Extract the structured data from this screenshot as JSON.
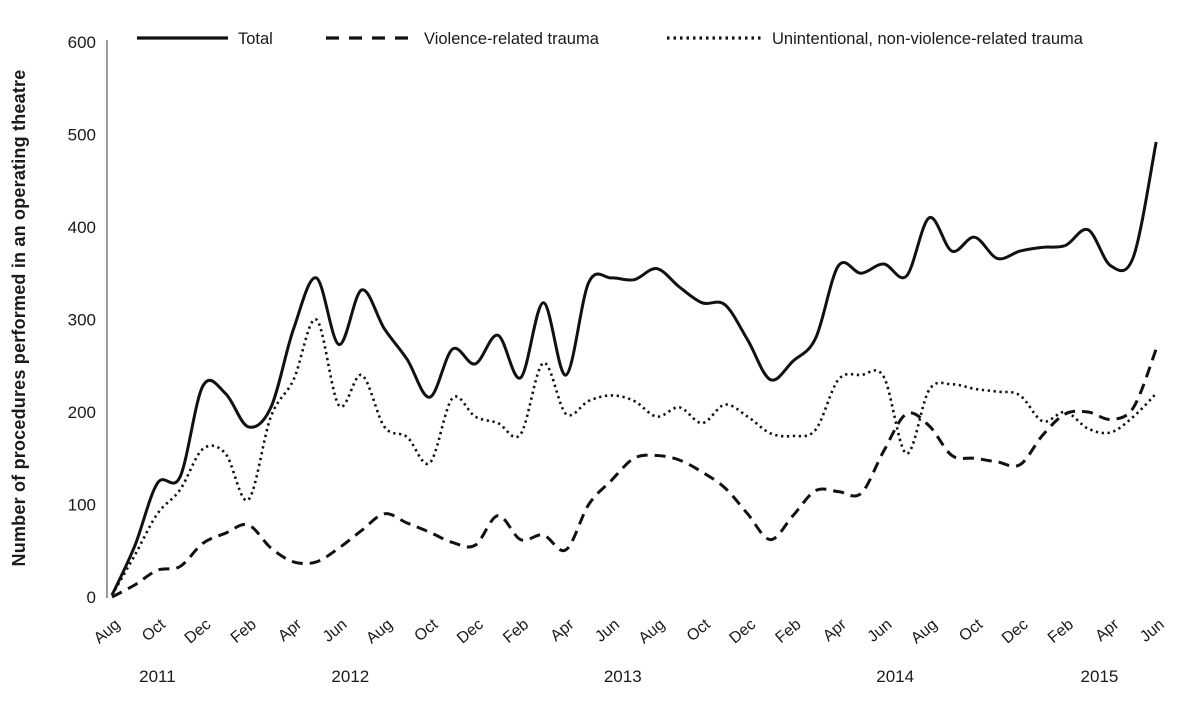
{
  "colors": {
    "line": "#111111",
    "axis": "#9b9b9b",
    "text": "#1a1a1a",
    "background": "#ffffff"
  },
  "chart_data": {
    "type": "line",
    "title": "",
    "xlabel": "",
    "ylabel": "Number of procedures performed in an operating theatre",
    "ylim": [
      0,
      600
    ],
    "yticks": [
      0,
      100,
      200,
      300,
      400,
      500,
      600
    ],
    "grid": false,
    "legend_position": "top",
    "x_tick_interval_months": 2,
    "x_tick_labels": [
      "Aug",
      "Oct",
      "Dec",
      "Feb",
      "Apr",
      "Jun",
      "Aug",
      "Oct",
      "Dec",
      "Feb",
      "Apr",
      "Jun",
      "Aug",
      "Oct",
      "Dec",
      "Feb",
      "Apr",
      "Jun",
      "Aug",
      "Oct",
      "Dec",
      "Feb",
      "Apr",
      "Jun"
    ],
    "year_labels": [
      "2011",
      "2012",
      "2013",
      "2014",
      "2015"
    ],
    "x": [
      "Aug 2011",
      "Sep 2011",
      "Oct 2011",
      "Nov 2011",
      "Dec 2011",
      "Jan 2012",
      "Feb 2012",
      "Mar 2012",
      "Apr 2012",
      "May 2012",
      "Jun 2012",
      "Jul 2012",
      "Aug 2012",
      "Sep 2012",
      "Oct 2012",
      "Nov 2012",
      "Dec 2012",
      "Jan 2013",
      "Feb 2013",
      "Mar 2013",
      "Apr 2013",
      "May 2013",
      "Jun 2013",
      "Jul 2013",
      "Aug 2013",
      "Sep 2013",
      "Oct 2013",
      "Nov 2013",
      "Dec 2013",
      "Jan 2014",
      "Feb 2014",
      "Mar 2014",
      "Apr 2014",
      "May 2014",
      "Jun 2014",
      "Jul 2014",
      "Aug 2014",
      "Sep 2014",
      "Oct 2014",
      "Nov 2014",
      "Dec 2014",
      "Jan 2015",
      "Feb 2015",
      "Mar 2015",
      "Apr 2015",
      "May 2015",
      "Jun 2015"
    ],
    "series": [
      {
        "name": "Total",
        "style": "solid",
        "values": [
          2,
          55,
          123,
          130,
          228,
          220,
          184,
          205,
          290,
          345,
          273,
          332,
          290,
          257,
          216,
          268,
          252,
          283,
          237,
          318,
          240,
          340,
          345,
          343,
          355,
          335,
          318,
          316,
          278,
          235,
          255,
          280,
          358,
          350,
          360,
          347,
          410,
          374,
          389,
          366,
          374,
          378,
          380,
          397,
          358,
          368,
          492
        ]
      },
      {
        "name": "Violence-related trauma",
        "style": "dashed",
        "values": [
          0,
          13,
          29,
          33,
          58,
          69,
          78,
          53,
          38,
          38,
          53,
          72,
          90,
          80,
          70,
          59,
          56,
          88,
          62,
          67,
          51,
          100,
          126,
          150,
          153,
          148,
          135,
          118,
          90,
          62,
          88,
          115,
          114,
          112,
          158,
          198,
          185,
          153,
          150,
          146,
          143,
          175,
          198,
          200,
          192,
          205,
          268
        ]
      },
      {
        "name": "Unintentional, non-violence-related trauma",
        "style": "dotted",
        "values": [
          2,
          45,
          90,
          116,
          160,
          155,
          105,
          195,
          235,
          300,
          207,
          240,
          184,
          173,
          145,
          215,
          195,
          188,
          176,
          253,
          198,
          212,
          218,
          212,
          195,
          205,
          188,
          208,
          195,
          177,
          174,
          181,
          235,
          240,
          238,
          155,
          224,
          230,
          225,
          222,
          218,
          190,
          200,
          182,
          178,
          195,
          220
        ]
      }
    ]
  }
}
